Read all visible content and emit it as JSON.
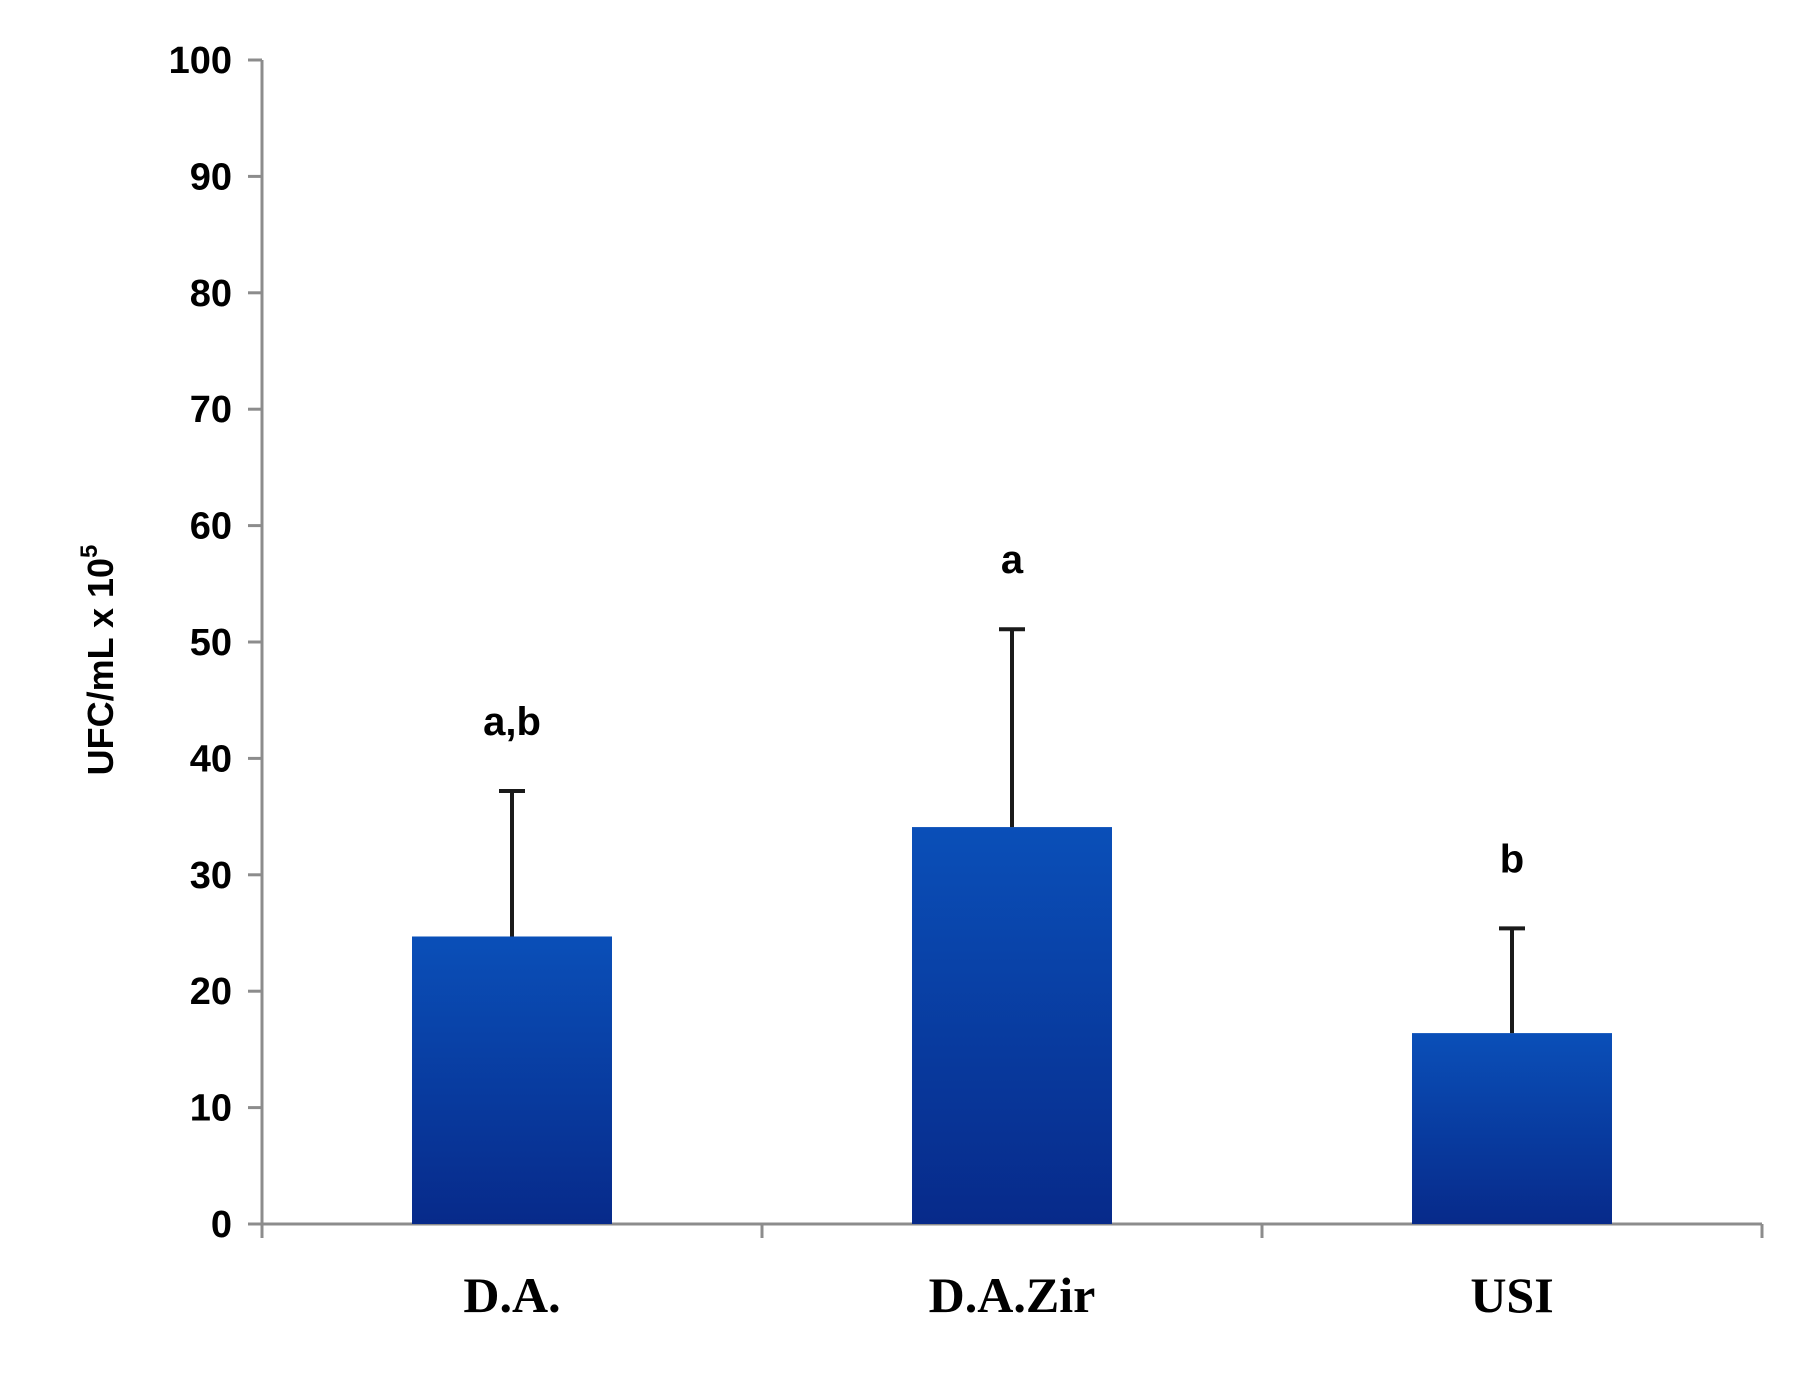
{
  "chart_data": {
    "type": "bar",
    "categories": [
      "D.A.",
      "D.A.Zir",
      "USI"
    ],
    "values": [
      24.7,
      34.1,
      16.4
    ],
    "error_upper": [
      37.2,
      51.1,
      25.4
    ],
    "significance_labels": [
      "a,b",
      "a",
      "b"
    ],
    "title": "",
    "xlabel": "",
    "ylabel": "UFC/mL x 10",
    "ylabel_superscript": "5",
    "ylim": [
      0,
      100
    ],
    "yticks": [
      "0",
      "10",
      "20",
      "30",
      "40",
      "50",
      "60",
      "70",
      "80",
      "90",
      "100"
    ],
    "grid": false,
    "legend": "none",
    "bar_color_top": "#0a4fb8",
    "bar_color_bottom": "#072a8a"
  }
}
